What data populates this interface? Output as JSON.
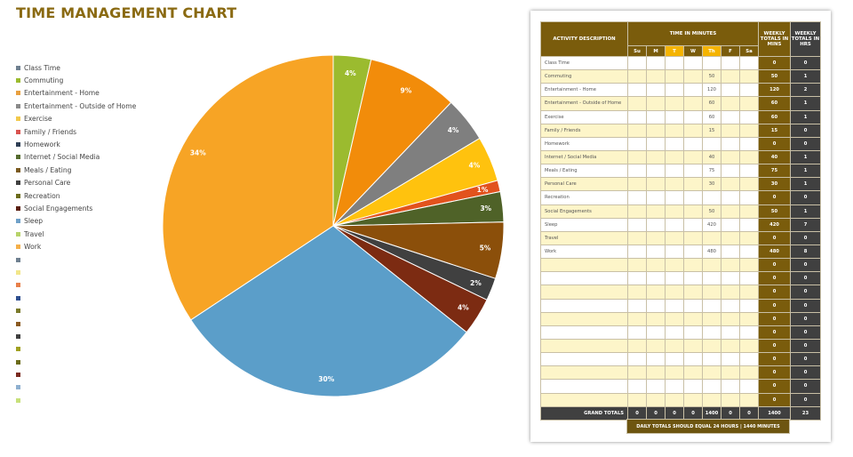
{
  "title": "TIME MANAGEMENT CHART",
  "chart_data": {
    "type": "pie",
    "legend_position": "left",
    "legend": [
      "Class Time",
      "Commuting",
      "Entertainment - Home",
      "Entertainment - Outside of Home",
      "Exercise",
      "Family / Friends",
      "Homework",
      "Internet / Social Media",
      "Meals / Eating",
      "Personal Care",
      "Recreation",
      "Social Engagements",
      "Sleep",
      "Travel",
      "Work"
    ],
    "legend_colors": [
      "#6f8090",
      "#9bbb2f",
      "#e8a040",
      "#8a8a8a",
      "#f2c94c",
      "#d9534f",
      "#2f3f55",
      "#556b2f",
      "#7a5a20",
      "#3f3f3f",
      "#6b6b1a",
      "#5a1f12",
      "#6fa0c8",
      "#b7d36a",
      "#f5b04a"
    ],
    "empty_legend_colors": [
      "#6f8090",
      "#f2e68a",
      "#e8804a",
      "#2f4f8f",
      "#7a7a2a",
      "#8a5a20",
      "#3f3f3f",
      "#a0a020",
      "#6b6b1a",
      "#7a2a20",
      "#8fb0d0",
      "#c7e07a"
    ],
    "slices": [
      {
        "label": "Commuting",
        "value": 50,
        "pct": "4%",
        "color": "#9bbb2f"
      },
      {
        "label": "Entertainment - Home",
        "value": 120,
        "pct": "9%",
        "color": "#f28c0a"
      },
      {
        "label": "Entertainment - Outside of Home",
        "value": 60,
        "pct": "4%",
        "color": "#7f7f7f"
      },
      {
        "label": "Exercise",
        "value": 60,
        "pct": "4%",
        "color": "#ffc20e"
      },
      {
        "label": "Family / Friends",
        "value": 15,
        "pct": "1%",
        "color": "#e2521d"
      },
      {
        "label": "Internet / Social Media",
        "value": 40,
        "pct": "3%",
        "color": "#4f6228"
      },
      {
        "label": "Meals / Eating",
        "value": 75,
        "pct": "5%",
        "color": "#8b4f0a"
      },
      {
        "label": "Personal Care",
        "value": 30,
        "pct": "2%",
        "color": "#404040"
      },
      {
        "label": "Social Engagements",
        "value": 50,
        "pct": "4%",
        "color": "#7c2b12"
      },
      {
        "label": "Sleep",
        "value": 420,
        "pct": "30%",
        "color": "#5b9ec9"
      },
      {
        "label": "Work",
        "value": 480,
        "pct": "34%",
        "color": "#f7a425"
      }
    ]
  },
  "table": {
    "h_activity": "ACTIVITY DESCRIPTION",
    "h_time": "TIME IN MINUTES",
    "days": [
      "Su",
      "M",
      "T",
      "W",
      "Th",
      "F",
      "Sa"
    ],
    "h_weekly_mins": "WEEKLY TOTALS IN MINS",
    "h_weekly_hrs": "WEEKLY TOTALS IN HRS",
    "rows": [
      {
        "a": "Class Time",
        "th": "",
        "m": "0",
        "h": "0"
      },
      {
        "a": "Commuting",
        "th": "50",
        "m": "50",
        "h": "1"
      },
      {
        "a": "Entertainment - Home",
        "th": "120",
        "m": "120",
        "h": "2"
      },
      {
        "a": "Entertainment - Outside of Home",
        "th": "60",
        "m": "60",
        "h": "1"
      },
      {
        "a": "Exercise",
        "th": "60",
        "m": "60",
        "h": "1"
      },
      {
        "a": "Family / Friends",
        "th": "15",
        "m": "15",
        "h": "0"
      },
      {
        "a": "Homework",
        "th": "",
        "m": "0",
        "h": "0"
      },
      {
        "a": "Internet / Social Media",
        "th": "40",
        "m": "40",
        "h": "1"
      },
      {
        "a": "Meals / Eating",
        "th": "75",
        "m": "75",
        "h": "1"
      },
      {
        "a": "Personal Care",
        "th": "30",
        "m": "30",
        "h": "1"
      },
      {
        "a": "Recreation",
        "th": "",
        "m": "0",
        "h": "0"
      },
      {
        "a": "Social Engagements",
        "th": "50",
        "m": "50",
        "h": "1"
      },
      {
        "a": "Sleep",
        "th": "420",
        "m": "420",
        "h": "7"
      },
      {
        "a": "Travel",
        "th": "",
        "m": "0",
        "h": "0"
      },
      {
        "a": "Work",
        "th": "480",
        "m": "480",
        "h": "8"
      },
      {
        "a": "",
        "th": "",
        "m": "0",
        "h": "0"
      },
      {
        "a": "",
        "th": "",
        "m": "0",
        "h": "0"
      },
      {
        "a": "",
        "th": "",
        "m": "0",
        "h": "0"
      },
      {
        "a": "",
        "th": "",
        "m": "0",
        "h": "0"
      },
      {
        "a": "",
        "th": "",
        "m": "0",
        "h": "0"
      },
      {
        "a": "",
        "th": "",
        "m": "0",
        "h": "0"
      },
      {
        "a": "",
        "th": "",
        "m": "0",
        "h": "0"
      },
      {
        "a": "",
        "th": "",
        "m": "0",
        "h": "0"
      },
      {
        "a": "",
        "th": "",
        "m": "0",
        "h": "0"
      },
      {
        "a": "",
        "th": "",
        "m": "0",
        "h": "0"
      },
      {
        "a": "",
        "th": "",
        "m": "0",
        "h": "0"
      }
    ],
    "grand_label": "GRAND TOTALS",
    "grand_days": [
      "0",
      "0",
      "0",
      "0",
      "1400",
      "0",
      "0"
    ],
    "grand_mins": "1400",
    "grand_hrs": "23",
    "note": "DAILY TOTALS SHOULD EQUAL 24 HOURS  |  1440 MINUTES"
  }
}
